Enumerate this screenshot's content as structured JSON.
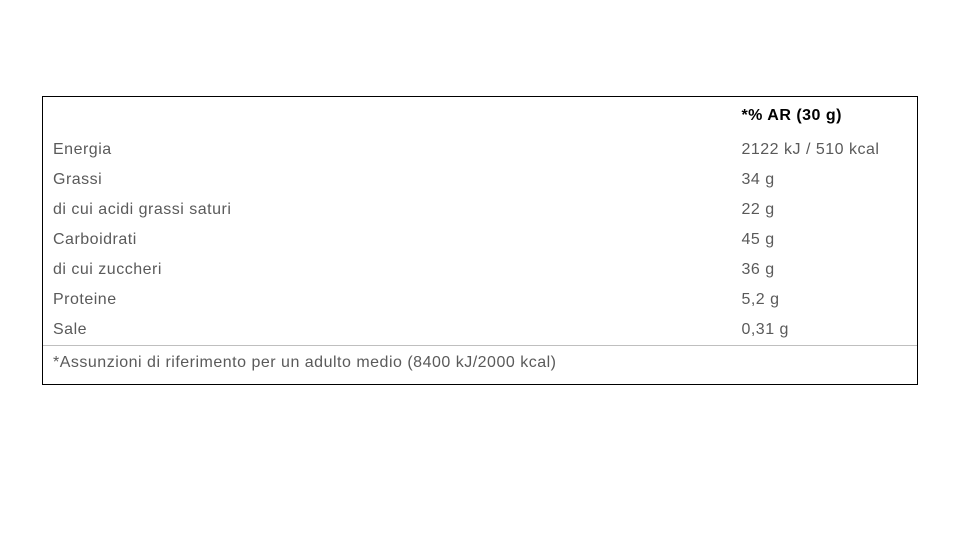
{
  "nutrition_table": {
    "type": "table",
    "header": {
      "label_col": "",
      "value_col": "*% AR (30 g)"
    },
    "rows": [
      {
        "label": "Energia",
        "value": "2122 kJ / 510 kcal"
      },
      {
        "label": "Grassi",
        "value": "34 g"
      },
      {
        "label": "di cui acidi grassi saturi",
        "value": "22 g"
      },
      {
        "label": "Carboidrati",
        "value": "45 g"
      },
      {
        "label": "di cui zuccheri",
        "value": "36 g"
      },
      {
        "label": "Proteine",
        "value": "5,2 g"
      },
      {
        "label": "Sale",
        "value": "0,31 g"
      }
    ],
    "footnote": "*Assunzioni di riferimento per un adulto medio (8400 kJ/2000 kcal)",
    "colors": {
      "border": "#000000",
      "divider": "#bfbfbf",
      "text": "#5a5a5a",
      "header_text": "#000000",
      "background": "#ffffff"
    },
    "font_size_pt": 12
  }
}
